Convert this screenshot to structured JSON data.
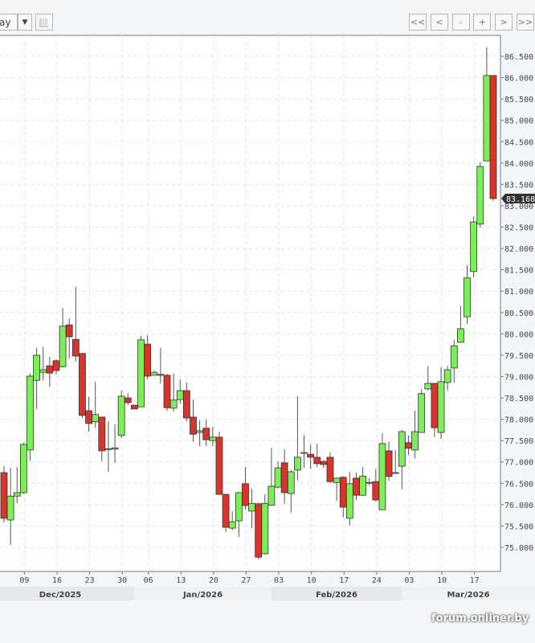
{
  "toolbar": {
    "period_select": "ay",
    "period_arrow": "▼",
    "settings_icon": "list-grid-icon",
    "nav": [
      {
        "label": "<<",
        "name": "first-button"
      },
      {
        "label": "<",
        "name": "prev-button"
      },
      {
        "label": "-",
        "name": "zoom-out-button"
      },
      {
        "label": "+",
        "name": "zoom-in-button"
      },
      {
        "label": ">",
        "name": "next-button"
      },
      {
        "label": ">>",
        "name": "last-button"
      }
    ]
  },
  "watermark": "forum.onliner.by",
  "chart_data": {
    "type": "candlestick",
    "ylim": [
      74.5,
      87.0
    ],
    "yticks": [
      "75.000",
      "75.500",
      "76.000",
      "76.500",
      "77.000",
      "77.500",
      "78.000",
      "78.500",
      "79.000",
      "79.500",
      "80.000",
      "80.500",
      "81.000",
      "81.500",
      "82.000",
      "82.500",
      "83.000",
      "83.500",
      "84.000",
      "84.500",
      "85.000",
      "85.500",
      "86.000",
      "86.500"
    ],
    "last_price": "83.168",
    "grid": true,
    "colors": {
      "up": "#7ded5a",
      "down": "#d9342b",
      "outline": "#333333"
    },
    "xticks": [
      {
        "date": "2025-12-09",
        "label": "09"
      },
      {
        "date": "2025-12-16",
        "label": "16"
      },
      {
        "date": "2025-12-23",
        "label": "23"
      },
      {
        "date": "2025-12-30",
        "label": "30"
      },
      {
        "date": "2026-01-06",
        "label": "06"
      },
      {
        "date": "2026-01-13",
        "label": "13"
      },
      {
        "date": "2026-01-20",
        "label": "20"
      },
      {
        "date": "2026-01-27",
        "label": "27"
      },
      {
        "date": "2026-02-03",
        "label": "03"
      },
      {
        "date": "2026-02-10",
        "label": "10"
      },
      {
        "date": "2026-02-17",
        "label": "17"
      },
      {
        "date": "2026-02-24",
        "label": "24"
      },
      {
        "date": "2026-03-03",
        "label": "03"
      },
      {
        "date": "2026-03-10",
        "label": "10"
      },
      {
        "date": "2026-03-17",
        "label": "17"
      }
    ],
    "months": [
      {
        "label": "Dec/2025",
        "start": "2025-12-01"
      },
      {
        "label": "Jan/2026",
        "start": "2026-01-01"
      },
      {
        "label": "Feb/2026",
        "start": "2026-02-01"
      },
      {
        "label": "Mar/2026",
        "start": "2026-03-01"
      }
    ],
    "columns": [
      "date",
      "open",
      "high",
      "low",
      "close"
    ],
    "candles": [
      [
        "2025-12-04",
        76.75,
        76.9,
        75.58,
        75.68
      ],
      [
        "2025-12-05",
        75.64,
        76.86,
        75.06,
        76.2
      ],
      [
        "2025-12-08",
        76.2,
        76.88,
        76.03,
        76.28
      ],
      [
        "2025-12-09",
        76.28,
        77.45,
        76.25,
        77.41
      ],
      [
        "2025-12-10",
        77.28,
        79.07,
        77.03,
        79.01
      ],
      [
        "2025-12-11",
        78.91,
        79.67,
        78.24,
        79.5
      ],
      [
        "2025-12-12",
        79.1,
        79.7,
        78.91,
        79.16
      ],
      [
        "2025-12-15",
        79.25,
        79.46,
        78.76,
        79.08
      ],
      [
        "2025-12-16",
        79.37,
        79.4,
        79.05,
        79.14
      ],
      [
        "2025-12-17",
        79.23,
        80.61,
        79.22,
        80.18
      ],
      [
        "2025-12-18",
        80.21,
        80.36,
        79.42,
        79.93
      ],
      [
        "2025-12-19",
        79.87,
        81.1,
        79.35,
        79.48
      ],
      [
        "2025-12-22",
        79.54,
        79.55,
        78.03,
        78.09
      ],
      [
        "2025-12-23",
        78.2,
        78.52,
        77.71,
        77.9
      ],
      [
        "2025-12-24",
        77.94,
        78.88,
        77.8,
        78.11
      ],
      [
        "2025-12-25",
        78.05,
        78.06,
        77.01,
        77.26
      ],
      [
        "2025-12-26",
        77.3,
        77.95,
        76.77,
        77.31
      ],
      [
        "2025-12-29",
        77.3,
        77.88,
        76.98,
        77.33
      ],
      [
        "2025-12-30",
        77.62,
        78.67,
        77.56,
        78.54
      ],
      [
        "2025-12-31",
        78.5,
        78.61,
        78.33,
        78.39
      ],
      [
        "2026-01-02",
        78.33,
        78.33,
        78.24,
        78.24
      ],
      [
        "2026-01-05",
        78.29,
        79.95,
        78.29,
        79.86
      ],
      [
        "2026-01-06",
        79.76,
        79.97,
        78.93,
        79.01
      ],
      [
        "2026-01-07",
        79.03,
        79.14,
        79.03,
        79.1
      ],
      [
        "2026-01-08",
        79.05,
        79.67,
        78.84,
        79.04
      ],
      [
        "2026-01-09",
        79.03,
        79.06,
        78.2,
        78.27
      ],
      [
        "2026-01-12",
        78.26,
        79.07,
        78.18,
        78.45
      ],
      [
        "2026-01-13",
        78.46,
        78.93,
        78.37,
        78.67
      ],
      [
        "2026-01-14",
        78.67,
        78.86,
        77.95,
        78.03
      ],
      [
        "2026-01-15",
        78.05,
        78.46,
        77.47,
        77.65
      ],
      [
        "2026-01-16",
        77.69,
        77.97,
        77.37,
        77.73
      ],
      [
        "2026-01-19",
        77.79,
        77.99,
        77.37,
        77.52
      ],
      [
        "2026-01-20",
        77.5,
        77.82,
        77.37,
        77.58
      ],
      [
        "2026-01-21",
        77.58,
        77.71,
        76.24,
        76.24
      ],
      [
        "2026-01-22",
        76.24,
        76.26,
        75.36,
        75.47
      ],
      [
        "2026-01-23",
        75.45,
        75.85,
        75.4,
        75.6
      ],
      [
        "2026-01-26",
        75.62,
        76.3,
        75.24,
        76.28
      ],
      [
        "2026-01-27",
        76.49,
        76.88,
        75.88,
        75.98
      ],
      [
        "2026-01-28",
        75.85,
        76.37,
        75.45,
        76.03
      ],
      [
        "2026-01-29",
        76.02,
        76.05,
        74.72,
        74.77
      ],
      [
        "2026-01-30",
        74.85,
        76.24,
        74.83,
        76.03
      ],
      [
        "2026-02-02",
        75.99,
        77.33,
        75.97,
        76.43
      ],
      [
        "2026-02-03",
        76.41,
        77.01,
        76.37,
        76.86
      ],
      [
        "2026-02-04",
        76.98,
        77.3,
        76.02,
        76.28
      ],
      [
        "2026-02-05",
        76.26,
        76.81,
        75.81,
        76.77
      ],
      [
        "2026-02-06",
        76.81,
        78.54,
        76.56,
        77.11
      ],
      [
        "2026-02-09",
        77.22,
        77.63,
        76.86,
        77.22
      ],
      [
        "2026-02-10",
        77.18,
        77.41,
        76.84,
        77.11
      ],
      [
        "2026-02-11",
        77.11,
        77.43,
        76.88,
        76.96
      ],
      [
        "2026-02-12",
        77.01,
        77.05,
        76.86,
        76.94
      ],
      [
        "2026-02-13",
        77.11,
        77.22,
        76.51,
        76.54
      ],
      [
        "2026-02-16",
        76.52,
        76.64,
        76.09,
        76.62
      ],
      [
        "2026-02-17",
        76.64,
        76.67,
        75.7,
        75.94
      ],
      [
        "2026-02-18",
        75.68,
        76.77,
        75.51,
        76.49
      ],
      [
        "2026-02-19",
        76.62,
        76.75,
        76.11,
        76.22
      ],
      [
        "2026-02-20",
        76.22,
        76.88,
        76.2,
        76.67
      ],
      [
        "2026-02-23",
        76.52,
        76.62,
        76.45,
        76.52
      ],
      [
        "2026-02-24",
        76.54,
        76.84,
        76.07,
        76.11
      ],
      [
        "2026-02-25",
        75.88,
        77.67,
        75.88,
        77.43
      ],
      [
        "2026-02-26",
        77.26,
        77.48,
        76.56,
        76.66
      ],
      [
        "2026-02-27",
        76.75,
        77.28,
        76.73,
        76.75
      ],
      [
        "2026-03-02",
        76.9,
        77.75,
        76.36,
        77.71
      ],
      [
        "2026-03-03",
        77.45,
        77.62,
        77.16,
        77.32
      ],
      [
        "2026-03-04",
        77.28,
        78.2,
        77.09,
        77.71
      ],
      [
        "2026-03-05",
        77.69,
        78.71,
        77.69,
        78.6
      ],
      [
        "2026-03-06",
        78.71,
        79.25,
        78.67,
        78.84
      ],
      [
        "2026-03-09",
        78.84,
        78.84,
        77.58,
        77.8
      ],
      [
        "2026-03-10",
        77.69,
        79.22,
        77.54,
        78.88
      ],
      [
        "2026-03-11",
        78.86,
        79.25,
        78.67,
        79.16
      ],
      [
        "2026-03-12",
        79.2,
        79.86,
        78.86,
        79.72
      ],
      [
        "2026-03-13",
        79.8,
        80.65,
        79.8,
        80.12
      ],
      [
        "2026-03-16",
        80.4,
        81.61,
        80.23,
        81.31
      ],
      [
        "2026-03-17",
        81.46,
        82.75,
        81.32,
        82.62
      ],
      [
        "2026-03-18",
        82.57,
        84.02,
        82.49,
        83.92
      ],
      [
        "2026-03-19",
        84.05,
        86.71,
        84.05,
        86.05
      ],
      [
        "2026-03-20",
        86.05,
        86.05,
        83.11,
        83.168
      ]
    ]
  }
}
